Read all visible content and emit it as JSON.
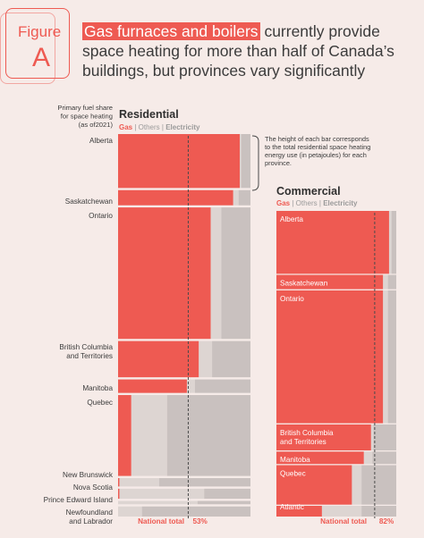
{
  "figure": {
    "label": "Figure",
    "letter": "A"
  },
  "headline": {
    "highlight": "Gas furnaces and boilers",
    "rest": "currently provide space heating for more than half of Canada’s buildings, but provinces vary significantly"
  },
  "colors": {
    "gas": "#ee5a52",
    "others": "#ddd5d2",
    "electricity": "#c9c1bf",
    "background": "#f6ebe8",
    "text": "#3b3b3b",
    "legend_gas": "#ee5a52",
    "legend_muted": "#9a9a9a"
  },
  "chart_data": [
    {
      "type": "bar",
      "orientation": "horizontal-stacked",
      "title": "Residential",
      "axis_note": "Primary fuel share for space heating (as of2021)",
      "legend": [
        "Gas",
        "Others",
        "Electricity"
      ],
      "annotation": "The height of each bar corresponds to the total residential space heating energy use (in petajoules) for each province.",
      "national_total_label": "National total",
      "national_total_value": "53%",
      "national_total_share": 0.53,
      "categories": [
        {
          "name": "Alberta",
          "label": "Alberta",
          "energy_weight": 64,
          "gas": 0.92,
          "others": 0.01,
          "electricity": 0.07
        },
        {
          "name": "Saskatchewan",
          "label": "Saskatchewan",
          "energy_weight": 18,
          "gas": 0.87,
          "others": 0.04,
          "electricity": 0.09
        },
        {
          "name": "Ontario",
          "label": "Ontario",
          "energy_weight": 156,
          "gas": 0.7,
          "others": 0.08,
          "electricity": 0.22
        },
        {
          "name": "British Columbia and Territories",
          "label": "British Columbia\nand Territories",
          "energy_weight": 43,
          "gas": 0.61,
          "others": 0.1,
          "electricity": 0.29
        },
        {
          "name": "Manitoba",
          "label": "Manitoba",
          "energy_weight": 16,
          "gas": 0.52,
          "others": 0.06,
          "electricity": 0.42
        },
        {
          "name": "Quebec",
          "label": "Quebec",
          "energy_weight": 96,
          "gas": 0.1,
          "others": 0.27,
          "electricity": 0.63
        },
        {
          "name": "New Brunswick",
          "label": "New Brunswick",
          "energy_weight": 10,
          "gas": 0.01,
          "others": 0.3,
          "electricity": 0.69
        },
        {
          "name": "Nova Scotia",
          "label": "Nova Scotia",
          "energy_weight": 12,
          "gas": 0.01,
          "others": 0.64,
          "electricity": 0.35
        },
        {
          "name": "Prince Edward Island",
          "label": "Prince Edward Island",
          "energy_weight": 4,
          "gas": 0.0,
          "others": 0.6,
          "electricity": 0.4
        },
        {
          "name": "Newfoundland and Labrador",
          "label": "Newfoundland\nand Labrador",
          "energy_weight": 12,
          "gas": 0.0,
          "others": 0.18,
          "electricity": 0.82
        }
      ]
    },
    {
      "type": "bar",
      "orientation": "horizontal-stacked",
      "title": "Commercial",
      "legend": [
        "Gas",
        "Others",
        "Electricity"
      ],
      "national_total_label": "National total",
      "national_total_value": "82%",
      "national_total_share": 0.82,
      "categories": [
        {
          "name": "Alberta",
          "label": "Alberta",
          "energy_weight": 70,
          "gas": 0.94,
          "others": 0.02,
          "electricity": 0.04
        },
        {
          "name": "Saskatchewan",
          "label": "Saskatchewan",
          "energy_weight": 16,
          "gas": 0.89,
          "others": 0.04,
          "electricity": 0.07
        },
        {
          "name": "Ontario",
          "label": "Ontario",
          "energy_weight": 148,
          "gas": 0.89,
          "others": 0.04,
          "electricity": 0.07
        },
        {
          "name": "British Columbia and Territories",
          "label": "British Columbia\nand Territories",
          "energy_weight": 29,
          "gas": 0.79,
          "others": 0.02,
          "electricity": 0.19
        },
        {
          "name": "Manitoba",
          "label": "Manitoba",
          "energy_weight": 14,
          "gas": 0.73,
          "others": 0.07,
          "electricity": 0.2
        },
        {
          "name": "Quebec",
          "label": "Quebec",
          "energy_weight": 44,
          "gas": 0.63,
          "others": 0.08,
          "electricity": 0.29
        },
        {
          "name": "Atlantic",
          "label": "Atlantic",
          "energy_weight": 12,
          "gas": 0.38,
          "others": 0.33,
          "electricity": 0.29
        }
      ]
    }
  ]
}
